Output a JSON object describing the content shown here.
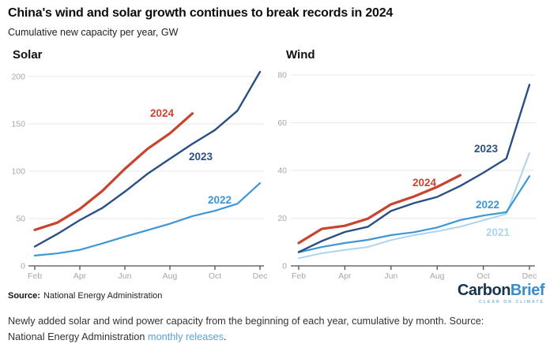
{
  "header": {
    "title": "China's wind and solar growth continues to break records in 2024",
    "subtitle": "Cumulative new capacity per year, GW"
  },
  "footer": {
    "source_label": "Source:",
    "source_text": "National Energy Administration",
    "logo": {
      "part1": "Carbon",
      "part2": "Brief",
      "tagline": "CLEAR ON CLIMATE"
    }
  },
  "caption": {
    "text": "Newly added solar and wind power capacity from the beginning of each year, cumulative by month. Source: National Energy Administration ",
    "link_text": "monthly releases",
    "period": "."
  },
  "colors": {
    "red_2024": "#c8442f",
    "navy_2023": "#2a5083",
    "blue_2022": "#3e97d4",
    "light_blue_2021": "#aed4ee",
    "gridline": "#e7e7e7",
    "axis": "#4d4d4d",
    "tick_text": "#a6a6a6",
    "link": "#57a3d6"
  },
  "chart_data": [
    {
      "type": "line",
      "title": "Solar",
      "unit": "GW",
      "categories": [
        "Feb",
        "Mar",
        "Apr",
        "May",
        "Jun",
        "Jul",
        "Aug",
        "Sep",
        "Oct",
        "Nov",
        "Dec"
      ],
      "x_tick_labels": [
        "Feb",
        "Apr",
        "Jun",
        "Aug",
        "Oct",
        "Dec"
      ],
      "yticks": [
        0,
        50,
        100,
        150,
        200
      ],
      "ylim": [
        0,
        210
      ],
      "grid": "horizontal",
      "legend": "inline-labels",
      "series": [
        {
          "name": "2022",
          "color": "#3e97d4",
          "width": 2.2,
          "values": [
            10.9,
            13.2,
            16.9,
            23.7,
            30.9,
            37.7,
            44.5,
            52.6,
            58.2,
            65.7,
            87.4
          ]
        },
        {
          "name": "2023",
          "color": "#2a5083",
          "width": 2.4,
          "values": [
            20.4,
            33.7,
            48.3,
            61.2,
            78.4,
            97.2,
            113.2,
            128.9,
            143.5,
            163.9,
            205.0
          ]
        },
        {
          "name": "2024",
          "color": "#c8442f",
          "width": 3.2,
          "values": [
            38.0,
            45.7,
            60.1,
            79.2,
            102.5,
            123.5,
            139.9,
            161.0
          ]
        }
      ]
    },
    {
      "type": "line",
      "title": "Wind",
      "unit": "GW",
      "categories": [
        "Feb",
        "Mar",
        "Apr",
        "May",
        "Jun",
        "Jul",
        "Aug",
        "Sep",
        "Oct",
        "Nov",
        "Dec"
      ],
      "x_tick_labels": [
        "Feb",
        "Apr",
        "Jun",
        "Aug",
        "Oct",
        "Dec"
      ],
      "yticks": [
        0,
        20,
        40,
        60,
        80
      ],
      "ylim": [
        0,
        80
      ],
      "grid": "horizontal",
      "legend": "inline-labels",
      "series": [
        {
          "name": "2021",
          "color": "#aed4ee",
          "width": 2.0,
          "values": [
            3.2,
            5.3,
            6.7,
            7.9,
            10.8,
            12.9,
            14.5,
            16.4,
            19.1,
            21.8,
            47.3
          ]
        },
        {
          "name": "2022",
          "color": "#3e97d4",
          "width": 2.2,
          "values": [
            5.7,
            7.9,
            9.6,
            10.9,
            12.9,
            14.1,
            16.1,
            19.2,
            21.1,
            22.5,
            37.6
          ]
        },
        {
          "name": "2023",
          "color": "#2a5083",
          "width": 2.4,
          "values": [
            5.8,
            10.4,
            14.2,
            16.4,
            23.0,
            26.3,
            28.9,
            33.5,
            39.0,
            45.0,
            75.9
          ]
        },
        {
          "name": "2024",
          "color": "#c8442f",
          "width": 3.2,
          "values": [
            9.6,
            15.5,
            16.8,
            19.8,
            25.8,
            29.1,
            33.1,
            38.0
          ]
        }
      ]
    }
  ]
}
